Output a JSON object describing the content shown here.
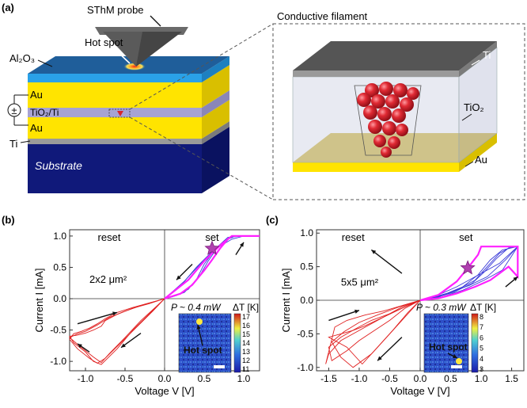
{
  "panel_a": {
    "label": "(a)",
    "probe_label": "SThM probe",
    "hotspot_label": "Hot spot",
    "layers": {
      "al2o3": "Al₂O₃",
      "au_top": "Au",
      "tio2_ti": "TiO₂/Ti",
      "au_bottom": "Au",
      "ti": "Ti",
      "substrate": "Substrate"
    },
    "power_symbol": "±",
    "inset": {
      "title": "Conductive filament",
      "ti": "Ti",
      "tio2": "TiO₂",
      "au": "Au"
    },
    "colors": {
      "al2o3": "#1f5e9a",
      "au": "#ffe400",
      "tio2": "#a7a3d2",
      "ti": "#9a9a9a",
      "substrate": "#10197a",
      "probe": "#5a5a5a",
      "filament": "#d6242c"
    }
  },
  "chart_data": [
    {
      "type": "line",
      "panel": "(b)",
      "xlabel": "Voltage V [V]",
      "ylabel": "Current I [mA]",
      "xlim": [
        -1.2,
        1.2
      ],
      "ylim": [
        -1.15,
        1.1
      ],
      "xticks": [
        "-1.0",
        "-0.5",
        "0.0",
        "0.5",
        "1.0"
      ],
      "xtick_values": [
        -1.0,
        -0.5,
        0.0,
        0.5,
        1.0
      ],
      "yticks": [
        "1.0",
        "0.5",
        "0.0",
        "-0.5",
        "-1.0"
      ],
      "ytick_values": [
        1.0,
        0.5,
        0.0,
        -0.5,
        -1.0
      ],
      "region_labels": [
        "reset",
        "set"
      ],
      "area_label": "2x2 μm²",
      "power_label": "P ~ 0.4 mW",
      "colorbar_label": "ΔT [K]",
      "colorbar_ticks": [
        "17",
        "16",
        "15",
        "14",
        "13",
        "12",
        "11"
      ],
      "colorbar_range": [
        11,
        17
      ],
      "inset_label": "Hot spot",
      "star": {
        "x": 0.6,
        "y": 0.8
      },
      "series": [
        {
          "color": "#e02020",
          "x": [
            0,
            -0.2,
            -0.4,
            -0.6,
            -0.75,
            -0.8,
            -0.9,
            -1.0,
            -1.1,
            -1.2,
            -1.15,
            -1.0,
            -0.9,
            -0.8,
            -0.6,
            -0.4,
            -0.2,
            0
          ],
          "y": [
            0,
            -0.08,
            -0.15,
            -0.25,
            -0.35,
            -0.44,
            -0.5,
            -0.55,
            -0.58,
            -0.6,
            -0.7,
            -0.85,
            -1.0,
            -1.05,
            -0.8,
            -0.5,
            -0.25,
            0
          ]
        },
        {
          "color": "#e02020",
          "x": [
            0,
            -0.2,
            -0.4,
            -0.6,
            -0.75,
            -0.85,
            -0.95,
            -1.05,
            -1.15,
            -1.2,
            -1.1,
            -0.95,
            -0.85,
            -0.75,
            -0.55,
            -0.35,
            -0.15,
            0
          ],
          "y": [
            0,
            -0.07,
            -0.14,
            -0.22,
            -0.32,
            -0.4,
            -0.47,
            -0.52,
            -0.56,
            -0.65,
            -0.8,
            -0.95,
            -1.03,
            -0.95,
            -0.7,
            -0.45,
            -0.2,
            0
          ]
        },
        {
          "color": "#e02020",
          "x": [
            0,
            -0.25,
            -0.5,
            -0.7,
            -0.85,
            -1.0,
            -1.1,
            -1.2,
            -1.05,
            -0.9,
            -0.8,
            -0.7,
            -0.5,
            -0.3,
            -0.1,
            0
          ],
          "y": [
            0,
            -0.09,
            -0.2,
            -0.3,
            -0.42,
            -0.52,
            -0.56,
            -0.62,
            -0.78,
            -0.93,
            -1.02,
            -0.88,
            -0.62,
            -0.35,
            -0.12,
            0
          ]
        },
        {
          "color": "#3b3bd8",
          "x": [
            0,
            0.1,
            0.25,
            0.4,
            0.5,
            0.6,
            0.7,
            0.8,
            0.9,
            1.0,
            0.8,
            0.6,
            0.4,
            0.2,
            0
          ],
          "y": [
            0,
            0.03,
            0.1,
            0.3,
            0.55,
            0.72,
            0.85,
            0.95,
            1.0,
            1.0,
            0.98,
            0.75,
            0.5,
            0.2,
            0
          ]
        },
        {
          "color": "#3b3bd8",
          "x": [
            0,
            0.15,
            0.3,
            0.45,
            0.55,
            0.65,
            0.75,
            0.85,
            1.0,
            0.85,
            0.65,
            0.45,
            0.25,
            0
          ],
          "y": [
            0,
            0.05,
            0.15,
            0.38,
            0.6,
            0.78,
            0.92,
            1.0,
            1.0,
            0.95,
            0.8,
            0.55,
            0.28,
            0
          ]
        },
        {
          "color": "#ff20ff",
          "x": [
            0,
            0.2,
            0.35,
            0.5,
            0.6,
            0.7,
            0.8,
            0.85,
            1.2,
            0.85,
            0.7,
            0.5,
            0.3,
            0
          ],
          "y": [
            0,
            0.08,
            0.22,
            0.45,
            0.62,
            0.8,
            0.95,
            1.0,
            1.0,
            1.0,
            0.85,
            0.6,
            0.3,
            0
          ]
        }
      ]
    },
    {
      "type": "line",
      "panel": "(c)",
      "xlabel": "Voltage V [V]",
      "ylabel": "Current I [mA]",
      "xlim": [
        -1.7,
        1.7
      ],
      "ylim": [
        -1.05,
        1.05
      ],
      "xticks": [
        "-1.5",
        "-1.0",
        "-0.5",
        "0.0",
        "0.5",
        "1.0",
        "1.5"
      ],
      "xtick_values": [
        -1.5,
        -1.0,
        -0.5,
        0.0,
        0.5,
        1.0,
        1.5
      ],
      "yticks": [
        "1.0",
        "0.5",
        "0.0",
        "-0.5",
        "-1.0"
      ],
      "ytick_values": [
        1.0,
        0.5,
        0.0,
        -0.5,
        -1.0
      ],
      "region_labels": [
        "reset",
        "set"
      ],
      "area_label": "5x5 μm²",
      "power_label": "P ~ 0.3 mW",
      "colorbar_label": "ΔT [K]",
      "colorbar_ticks": [
        "8",
        "7",
        "6",
        "5",
        "4",
        "3"
      ],
      "colorbar_range": [
        3,
        8
      ],
      "inset_label": "Hot spot",
      "star": {
        "x": 0.78,
        "y": 0.48
      },
      "series": [
        {
          "color": "#e02020",
          "x": [
            0,
            -0.3,
            -0.6,
            -0.9,
            -1.2,
            -1.4,
            -1.55,
            -1.5,
            -1.3,
            -1.1,
            -0.9,
            -0.6,
            -0.3,
            0
          ],
          "y": [
            0,
            -0.08,
            -0.16,
            -0.22,
            -0.3,
            -0.4,
            -0.95,
            -0.8,
            -0.6,
            -0.5,
            -0.4,
            -0.25,
            -0.1,
            0
          ]
        },
        {
          "color": "#e02020",
          "x": [
            0,
            -0.25,
            -0.5,
            -0.8,
            -1.05,
            -1.3,
            -1.5,
            -1.45,
            -1.2,
            -1.0,
            -0.75,
            -0.5,
            -0.25,
            0
          ],
          "y": [
            0,
            -0.1,
            -0.2,
            -0.3,
            -0.42,
            -0.55,
            -0.7,
            -0.9,
            -0.75,
            -0.6,
            -0.45,
            -0.3,
            -0.12,
            0
          ]
        },
        {
          "color": "#e02020",
          "x": [
            0,
            -0.3,
            -0.6,
            -0.9,
            -1.1,
            -1.3,
            -1.5,
            -1.2,
            -0.95,
            -0.7,
            -0.45,
            -0.2,
            0
          ],
          "y": [
            0,
            -0.12,
            -0.25,
            -0.38,
            -0.45,
            -0.5,
            -0.55,
            -0.7,
            -0.95,
            -0.7,
            -0.45,
            -0.18,
            0
          ]
        },
        {
          "color": "#e02020",
          "x": [
            0,
            -0.35,
            -0.7,
            -1.0,
            -1.25,
            -1.45,
            -1.3,
            -1.1,
            -0.8,
            -0.5,
            -0.2,
            0
          ],
          "y": [
            0,
            -0.1,
            -0.22,
            -0.33,
            -0.47,
            -0.62,
            -0.85,
            -1.0,
            -0.8,
            -0.5,
            -0.2,
            0
          ]
        },
        {
          "color": "#3b3bd8",
          "x": [
            0,
            0.3,
            0.6,
            0.9,
            1.1,
            1.3,
            1.5,
            1.6,
            1.3,
            1.0,
            0.6,
            0.3,
            0
          ],
          "y": [
            0,
            0.05,
            0.15,
            0.3,
            0.5,
            0.7,
            0.8,
            0.8,
            0.55,
            0.4,
            0.2,
            0.08,
            0
          ]
        },
        {
          "color": "#3b3bd8",
          "x": [
            0,
            0.35,
            0.7,
            0.95,
            1.15,
            1.35,
            1.6,
            1.4,
            1.1,
            0.8,
            0.5,
            0.2,
            0
          ],
          "y": [
            0,
            0.07,
            0.2,
            0.38,
            0.6,
            0.75,
            0.8,
            0.6,
            0.35,
            0.22,
            0.12,
            0.04,
            0
          ]
        },
        {
          "color": "#3b3bd8",
          "x": [
            0,
            0.25,
            0.55,
            0.85,
            1.05,
            1.25,
            1.45,
            1.6,
            1.35,
            1.05,
            0.7,
            0.35,
            0
          ],
          "y": [
            0,
            0.04,
            0.12,
            0.25,
            0.42,
            0.62,
            0.78,
            0.8,
            0.45,
            0.3,
            0.15,
            0.05,
            0
          ]
        },
        {
          "color": "#ff20ff",
          "x": [
            0,
            0.3,
            0.6,
            0.8,
            0.95,
            1.0,
            1.2,
            1.6,
            1.6,
            1.45,
            1.3,
            1.15,
            0.9,
            0.6,
            0.3,
            0
          ],
          "y": [
            0,
            0.08,
            0.28,
            0.5,
            0.68,
            0.8,
            0.8,
            0.8,
            0.35,
            0.5,
            0.4,
            0.3,
            0.2,
            0.1,
            0.03,
            0
          ]
        }
      ]
    }
  ]
}
